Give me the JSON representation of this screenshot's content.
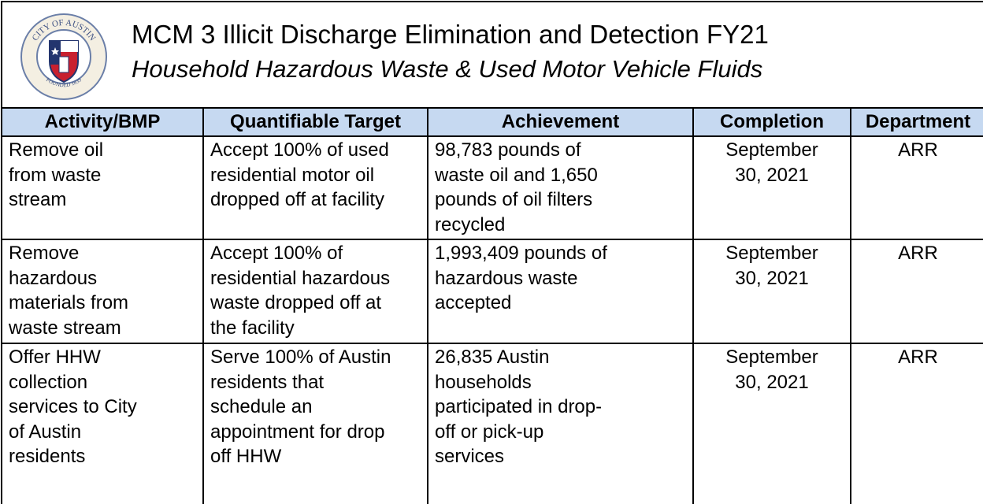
{
  "header": {
    "title": "MCM 3 Illicit Discharge Elimination and Detection FY21",
    "subtitle": "Household Hazardous Waste & Used Motor Vehicle Fluids",
    "logo": {
      "top_text": "CITY OF AUSTIN",
      "bottom_text": "FOUNDED 1839"
    }
  },
  "table": {
    "headers": [
      "Activity/BMP",
      "Quantifiable Target",
      "Achievement",
      "Completion",
      "Department"
    ],
    "rows": [
      [
        [
          "Remove oil",
          "from waste",
          "stream"
        ],
        [
          "Accept 100% of used",
          "residential motor oil",
          "dropped off at facility"
        ],
        [
          "98,783 pounds of",
          "waste oil and 1,650",
          "pounds of oil filters",
          "recycled"
        ],
        [
          "September",
          "30, 2021"
        ],
        [
          "ARR"
        ]
      ],
      [
        [
          "Remove",
          "hazardous",
          "materials from",
          "waste stream"
        ],
        [
          "Accept 100% of",
          "residential hazardous",
          "waste dropped off at",
          "the facility"
        ],
        [
          "1,993,409 pounds of",
          "hazardous waste",
          "accepted"
        ],
        [
          "September",
          "30, 2021"
        ],
        [
          "ARR"
        ]
      ],
      [
        [
          "Offer HHW",
          "collection",
          "services to City",
          "of Austin",
          "residents"
        ],
        [
          "Serve 100% of Austin",
          "residents that",
          "schedule an",
          "appointment for drop",
          "off HHW"
        ],
        [
          "26,835 Austin",
          "households",
          "participated in drop-",
          "off or pick-up",
          "services"
        ],
        [
          "September",
          "30, 2021"
        ],
        [
          "ARR"
        ]
      ]
    ]
  }
}
